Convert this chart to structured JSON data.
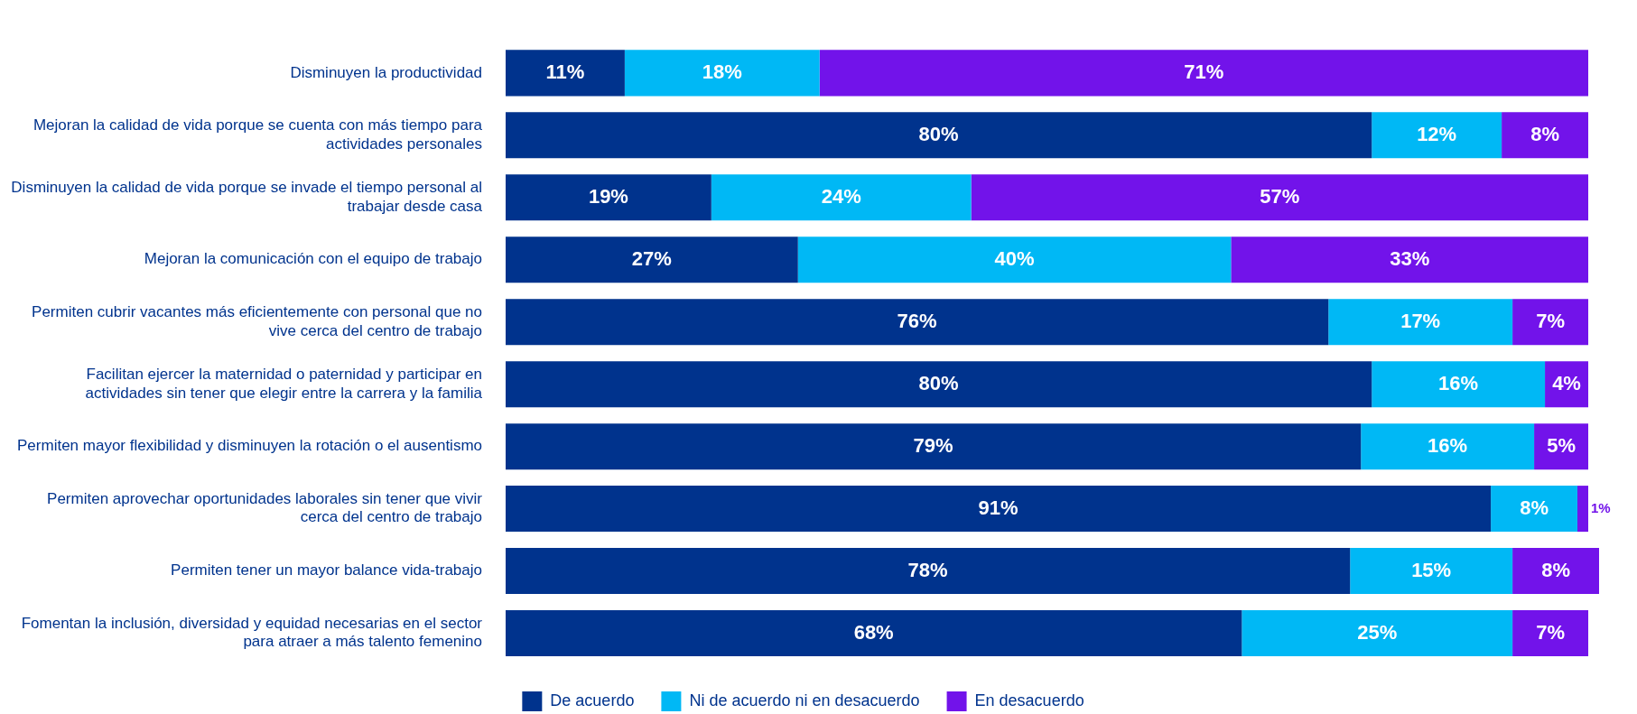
{
  "chart_data": {
    "type": "bar",
    "orientation": "horizontal",
    "stacked": true,
    "legend": "bottom",
    "categories": [
      "Disminuyen la productividad",
      "Mejoran la calidad de vida porque se cuenta con más tiempo para actividades personales",
      "Disminuyen la calidad de vida porque se invade el tiempo personal al trabajar desde casa",
      "Mejoran la comunicación con el equipo de trabajo",
      "Permiten cubrir vacantes más eficientemente con personal que no vive cerca del centro de trabajo",
      "Facilitan ejercer la maternidad o paternidad y participar en actividades sin tener que elegir entre la carrera y la familia",
      "Permiten mayor flexibilidad y disminuyen la rotación o el ausentismo",
      "Permiten aprovechar oportunidades laborales sin tener que vivir cerca del centro de trabajo",
      "Permiten tener un mayor balance vida-trabajo",
      "Fomentan la inclusión, diversidad y equidad necesarias en el sector para atraer a más talento femenino"
    ],
    "series": [
      {
        "name": "De acuerdo",
        "color": "#00338d",
        "values": [
          11,
          80,
          19,
          27,
          76,
          80,
          79,
          91,
          78,
          68
        ],
        "value_labels": [
          "11%",
          "80%",
          "19%",
          "27%",
          "76%",
          "80%",
          "79%",
          "91%",
          "78%",
          "68%"
        ]
      },
      {
        "name": "Ni de acuerdo ni en desacuerdo",
        "color": "#00b8f5",
        "values": [
          18,
          12,
          24,
          40,
          17,
          16,
          16,
          8,
          15,
          25
        ],
        "value_labels": [
          "18%",
          "12%",
          "24%",
          "40%",
          "17%",
          "16%",
          "16%",
          "8%",
          "15%",
          "25%"
        ]
      },
      {
        "name": "En desacuerdo",
        "color": "#7213ea",
        "values": [
          71,
          8,
          57,
          33,
          7,
          4,
          5,
          1,
          8,
          7
        ],
        "value_labels": [
          "71%",
          "8%",
          "57%",
          "33%",
          "7%",
          "4%",
          "5%",
          "1%",
          "8%",
          "7%"
        ]
      }
    ]
  }
}
